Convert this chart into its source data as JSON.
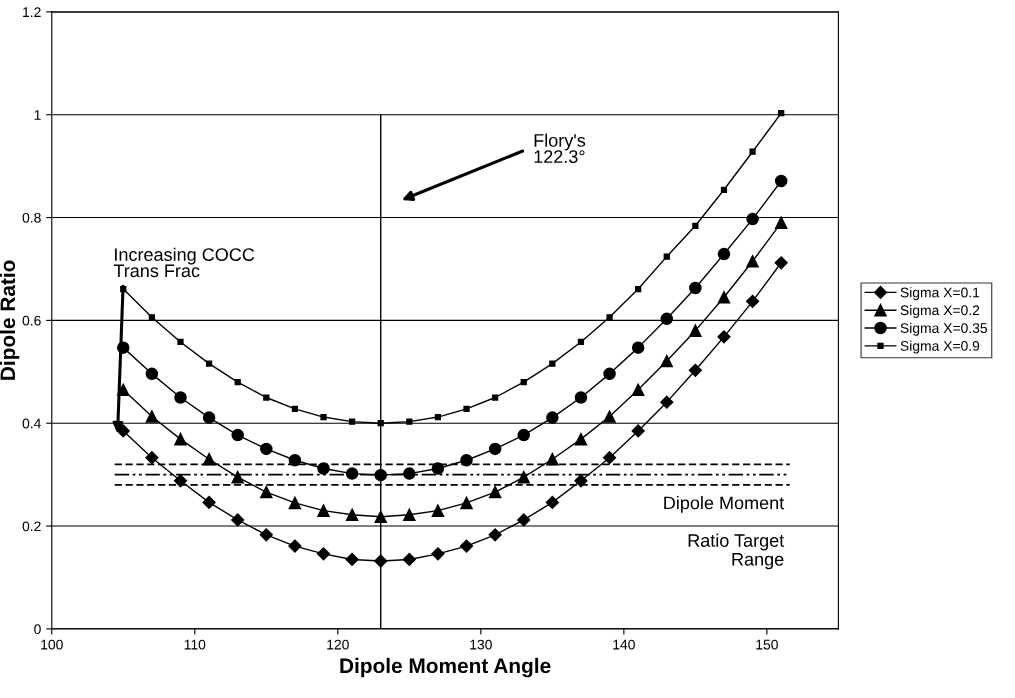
{
  "chart_data": {
    "type": "line",
    "xlabel": "Dipole Moment Angle",
    "ylabel": "Dipole Ratio",
    "x": [
      105,
      107,
      109,
      111,
      113,
      115,
      117,
      119,
      121,
      123,
      125,
      127,
      129,
      131,
      133,
      135,
      137,
      139,
      141,
      143,
      145,
      147,
      149,
      151
    ],
    "series": [
      {
        "name": "Sigma X=0.1",
        "color": "#000000",
        "marker": "diamond",
        "values": [
          0.385,
          0.333,
          0.288,
          0.246,
          0.212,
          0.183,
          0.161,
          0.146,
          0.135,
          0.132,
          0.135,
          0.146,
          0.161,
          0.183,
          0.212,
          0.246,
          0.288,
          0.333,
          0.385,
          0.441,
          0.503,
          0.568,
          0.637,
          0.712
        ]
      },
      {
        "name": "Sigma X=0.2",
        "color": "#000000",
        "marker": "triangle",
        "values": [
          0.465,
          0.413,
          0.369,
          0.33,
          0.295,
          0.266,
          0.245,
          0.23,
          0.222,
          0.218,
          0.222,
          0.23,
          0.245,
          0.266,
          0.295,
          0.33,
          0.369,
          0.413,
          0.465,
          0.521,
          0.58,
          0.645,
          0.715,
          0.79
        ]
      },
      {
        "name": "Sigma X=0.35",
        "color": "#000000",
        "marker": "circle",
        "values": [
          0.547,
          0.496,
          0.45,
          0.411,
          0.377,
          0.35,
          0.328,
          0.312,
          0.302,
          0.299,
          0.302,
          0.312,
          0.328,
          0.35,
          0.377,
          0.411,
          0.45,
          0.496,
          0.547,
          0.603,
          0.663,
          0.729,
          0.797,
          0.871
        ]
      },
      {
        "name": "Sigma X=0.9",
        "color": "#000000",
        "marker": "square",
        "values": [
          0.661,
          0.606,
          0.558,
          0.516,
          0.48,
          0.45,
          0.428,
          0.412,
          0.403,
          0.4,
          0.403,
          0.412,
          0.428,
          0.45,
          0.48,
          0.516,
          0.558,
          0.606,
          0.661,
          0.724,
          0.784,
          0.854,
          0.928,
          1.003
        ]
      }
    ],
    "xlim": [
      100,
      155
    ],
    "xticks": [
      100,
      110,
      120,
      130,
      140,
      150
    ],
    "ylim": [
      0,
      1.2
    ],
    "yticks": [
      0,
      0.2,
      0.4,
      0.6,
      0.8,
      1,
      1.2
    ],
    "grid": "y",
    "legend": "right",
    "ref_lines": [
      {
        "axis": "y",
        "value": 0.32,
        "line_style": "dashed",
        "color": "#000000"
      },
      {
        "axis": "y",
        "value": 0.3,
        "line_style": "dashdotdot",
        "color": "#000000"
      },
      {
        "axis": "y",
        "value": 0.28,
        "line_style": "dashed",
        "color": "#000000",
        "label": "Dipole Moment\n\nRatio Target\nRange"
      },
      {
        "axis": "x",
        "value": 123,
        "line_style": "solid",
        "color": "#000000"
      }
    ],
    "annotations": [
      "Flory's\n122.3°",
      {
        "text": "Increasing COCC\nTrans Frac",
        "x": 104.6,
        "y": 0.38
      }
    ]
  }
}
